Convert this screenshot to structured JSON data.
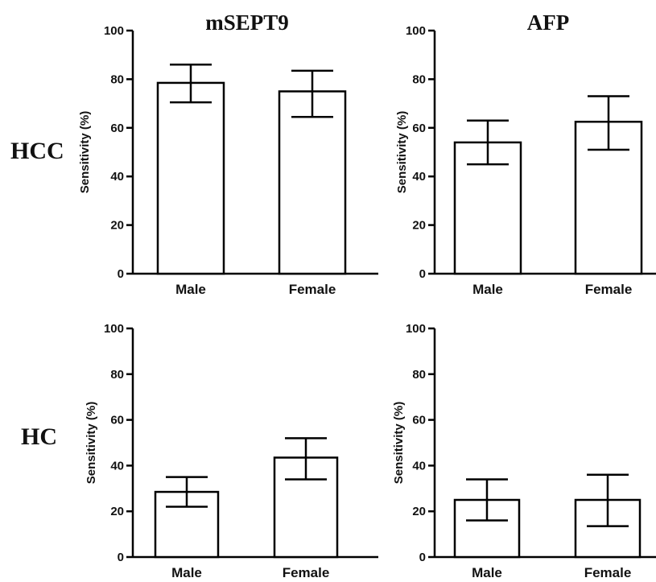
{
  "columns": [
    "mSEPT9",
    "AFP"
  ],
  "rows": [
    "HCC",
    "HC"
  ],
  "chart_data": [
    {
      "type": "bar",
      "column": "mSEPT9",
      "row": "HCC",
      "categories": [
        "Male",
        "Female"
      ],
      "values": [
        78.5,
        75
      ],
      "error_low": [
        70.5,
        64.5
      ],
      "error_high": [
        86,
        83.5
      ],
      "ylabel": "Sensitivity (%)",
      "ylim": [
        0,
        100
      ],
      "yticks": [
        "0",
        "20",
        "40",
        "60",
        "80",
        "100"
      ]
    },
    {
      "type": "bar",
      "column": "AFP",
      "row": "HCC",
      "categories": [
        "Male",
        "Female"
      ],
      "values": [
        54,
        62.5
      ],
      "error_low": [
        45,
        51
      ],
      "error_high": [
        63,
        73
      ],
      "ylabel": "Sensitivity (%)",
      "ylim": [
        0,
        100
      ],
      "yticks": [
        "0",
        "20",
        "40",
        "60",
        "80",
        "100"
      ]
    },
    {
      "type": "bar",
      "column": "mSEPT9",
      "row": "HC",
      "categories": [
        "Male",
        "Female"
      ],
      "values": [
        28.5,
        43.5
      ],
      "error_low": [
        22,
        34
      ],
      "error_high": [
        35,
        52
      ],
      "ylabel": "Sensitivity (%)",
      "ylim": [
        0,
        100
      ],
      "yticks": [
        "0",
        "20",
        "40",
        "60",
        "80",
        "100"
      ]
    },
    {
      "type": "bar",
      "column": "AFP",
      "row": "HC",
      "categories": [
        "Male",
        "Female"
      ],
      "values": [
        25,
        25
      ],
      "error_low": [
        16,
        13.5
      ],
      "error_high": [
        34,
        36
      ],
      "ylabel": "Sensitivity (%)",
      "ylim": [
        0,
        100
      ],
      "yticks": [
        "0",
        "20",
        "40",
        "60",
        "80",
        "100"
      ]
    }
  ]
}
